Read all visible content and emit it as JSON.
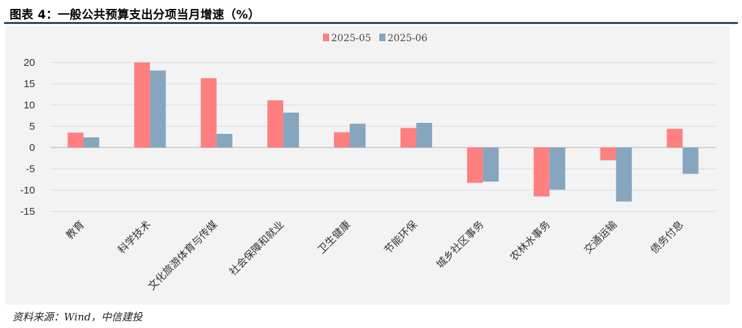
{
  "figure": {
    "title": "图表 4：一般公共预算支出分项当月增速（%）",
    "source": "资料来源：Wind，中信建投"
  },
  "colors": {
    "rule": "#2e4f6e",
    "panel": "#f3f3f3",
    "series_2025_05": "#ff7f7f",
    "series_2025_06": "#86a6bf",
    "gridline": "#d9d9d9",
    "zero_line": "#bfbfbf"
  },
  "chart_data": {
    "type": "bar",
    "title": "",
    "xlabel": "",
    "ylabel": "",
    "ylim": [
      -15,
      20
    ],
    "yticks": [
      20,
      15,
      10,
      5,
      0,
      -5,
      -10,
      -15
    ],
    "grid": "horizontal",
    "legend_position": "top-center",
    "categories": [
      "教育",
      "科学技术",
      "文化旅游体育与传媒",
      "社会保障和就业",
      "卫生健康",
      "节能环保",
      "城乡社区事务",
      "农林水事务",
      "交通运输",
      "债务付息"
    ],
    "series": [
      {
        "name": "2025-05",
        "color": "#ff7f7f",
        "values": [
          3.5,
          20.0,
          16.3,
          11.1,
          3.6,
          4.6,
          -8.3,
          -11.5,
          -3.0,
          4.4
        ]
      },
      {
        "name": "2025-06",
        "color": "#86a6bf",
        "values": [
          2.4,
          18.1,
          3.2,
          8.2,
          5.6,
          5.8,
          -8.0,
          -9.9,
          -12.7,
          -6.2
        ]
      }
    ]
  }
}
